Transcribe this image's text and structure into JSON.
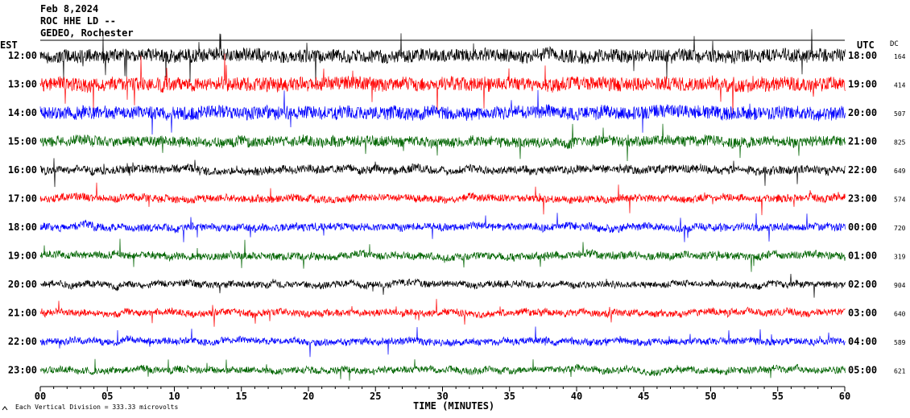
{
  "header": {
    "date": "Feb 8,2024",
    "station": "ROC HHE LD --",
    "location": "GEDEO, Rochester"
  },
  "chart_data": {
    "type": "line",
    "left_axis_title": "EST",
    "right_axis_title": "UTC",
    "dc_title": "DC",
    "xlabel": "TIME (MINUTES)",
    "footer": "Each Vertical Division =  333.33 microvolts",
    "xlim": [
      0,
      60
    ],
    "x_ticks": [
      {
        "v": 0,
        "label": "00"
      },
      {
        "v": 5,
        "label": "05"
      },
      {
        "v": 10,
        "label": "10"
      },
      {
        "v": 15,
        "label": "15"
      },
      {
        "v": 20,
        "label": "20"
      },
      {
        "v": 25,
        "label": "25"
      },
      {
        "v": 30,
        "label": "30"
      },
      {
        "v": 35,
        "label": "35"
      },
      {
        "v": 40,
        "label": "40"
      },
      {
        "v": 45,
        "label": "45"
      },
      {
        "v": 50,
        "label": "50"
      },
      {
        "v": 55,
        "label": "55"
      },
      {
        "v": 60,
        "label": "60"
      }
    ],
    "traces": [
      {
        "est": "12:00",
        "utc": "18:00",
        "dc": "164",
        "color": "#000000",
        "amp": 0.9
      },
      {
        "est": "13:00",
        "utc": "19:00",
        "dc": "414",
        "color": "#ff0000",
        "amp": 0.95
      },
      {
        "est": "14:00",
        "utc": "20:00",
        "dc": "507",
        "color": "#0000ff",
        "amp": 0.9
      },
      {
        "est": "15:00",
        "utc": "21:00",
        "dc": "825",
        "color": "#006400",
        "amp": 0.7
      },
      {
        "est": "16:00",
        "utc": "22:00",
        "dc": "649",
        "color": "#000000",
        "amp": 0.55
      },
      {
        "est": "17:00",
        "utc": "23:00",
        "dc": "574",
        "color": "#ff0000",
        "amp": 0.5
      },
      {
        "est": "18:00",
        "utc": "00:00",
        "dc": "720",
        "color": "#0000ff",
        "amp": 0.5
      },
      {
        "est": "19:00",
        "utc": "01:00",
        "dc": "319",
        "color": "#006400",
        "amp": 0.5
      },
      {
        "est": "20:00",
        "utc": "02:00",
        "dc": "904",
        "color": "#000000",
        "amp": 0.45
      },
      {
        "est": "21:00",
        "utc": "03:00",
        "dc": "640",
        "color": "#ff0000",
        "amp": 0.45
      },
      {
        "est": "22:00",
        "utc": "04:00",
        "dc": "589",
        "color": "#0000ff",
        "amp": 0.45
      },
      {
        "est": "23:00",
        "utc": "05:00",
        "dc": "621",
        "color": "#006400",
        "amp": 0.45
      }
    ]
  }
}
